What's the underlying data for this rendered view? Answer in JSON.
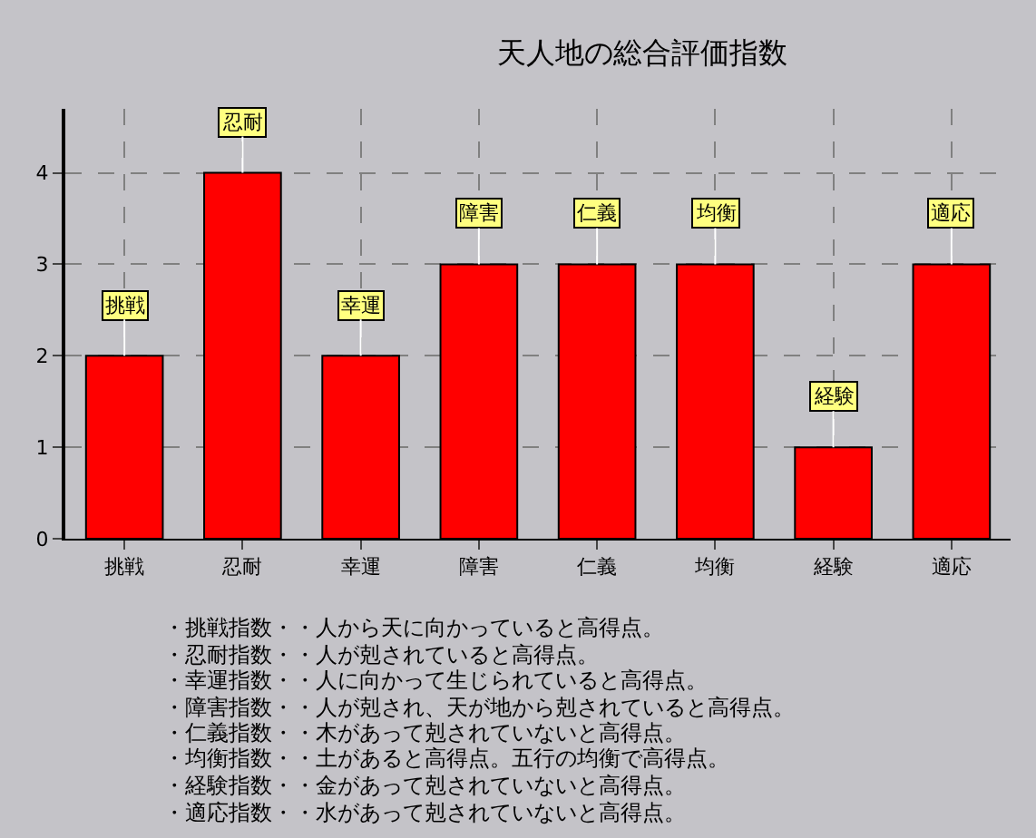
{
  "chart_data": {
    "type": "bar",
    "title": "天人地の総合評価指数",
    "categories": [
      "挑戦",
      "忍耐",
      "幸運",
      "障害",
      "仁義",
      "均衡",
      "経験",
      "適応"
    ],
    "values": [
      2,
      4,
      2,
      3,
      3,
      3,
      1,
      3
    ],
    "color": "#ff0000",
    "ylim": [
      0,
      4.7
    ],
    "yticks": [
      0,
      1,
      2,
      3,
      4
    ],
    "grid": true,
    "annotations": [
      {
        "text": "挑戦",
        "x": "挑戦",
        "y": 2
      },
      {
        "text": "忍耐",
        "x": "忍耐",
        "y": 4
      },
      {
        "text": "幸運",
        "x": "幸運",
        "y": 2
      },
      {
        "text": "障害",
        "x": "障害",
        "y": 3
      },
      {
        "text": "仁義",
        "x": "仁義",
        "y": 3
      },
      {
        "text": "均衡",
        "x": "均衡",
        "y": 3
      },
      {
        "text": "経験",
        "x": "経験",
        "y": 1
      },
      {
        "text": "適応",
        "x": "適応",
        "y": 3
      },
      "・挑戦指数・・人から天に向かっていると高得点。",
      "・忍耐指数・・人が剋されていると高得点。",
      "・幸運指数・・人に向かって生じられていると高得点。",
      "・障害指数・・人が剋され、天が地から剋されていると高得点。",
      "・仁義指数・・木があって剋されていないと高得点。",
      "・均衡指数・・土があると高得点。五行の均衡で高得点。",
      "・経験指数・・金があって剋されていないと高得点。",
      "・適応指数・・水があって剋されていないと高得点。"
    ]
  }
}
